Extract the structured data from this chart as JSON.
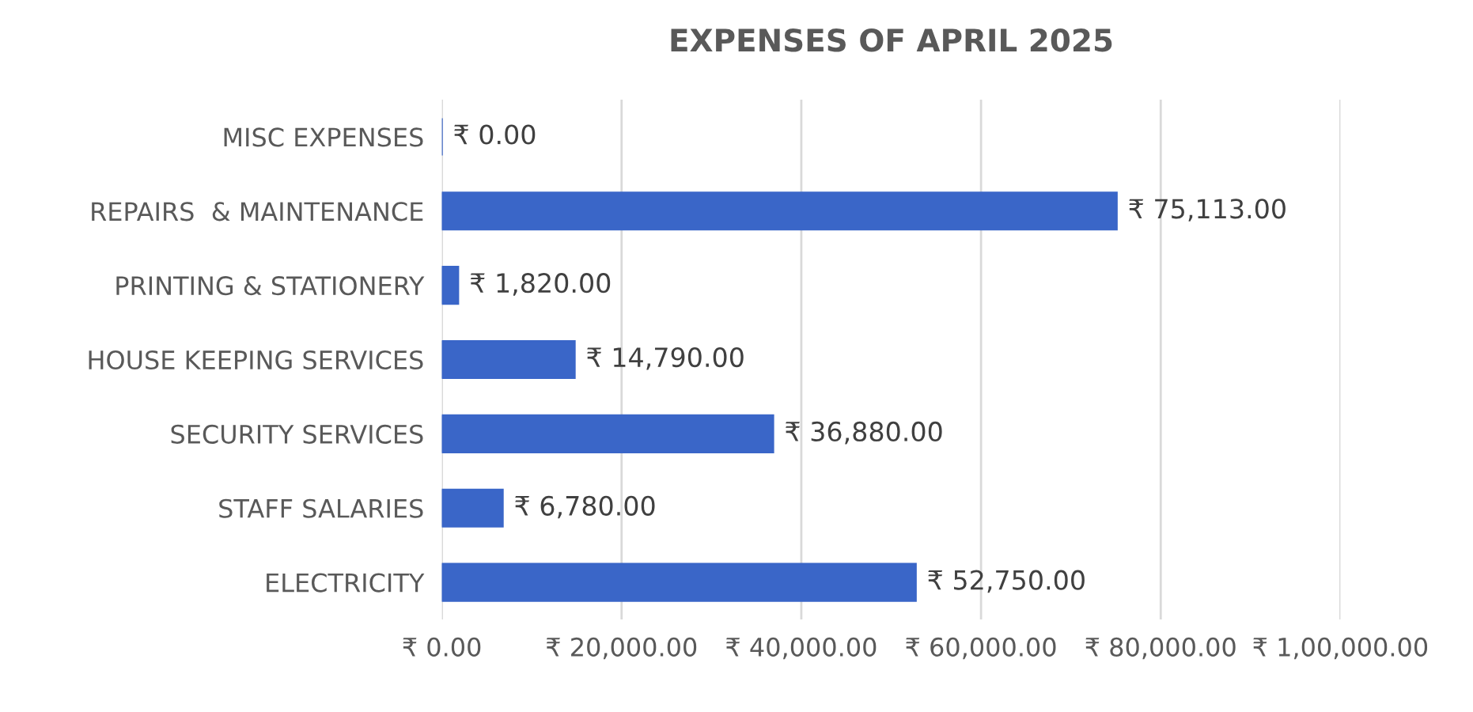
{
  "chart_data": {
    "type": "bar",
    "orientation": "horizontal",
    "title": "EXPENSES OF APRIL 2025",
    "categories": [
      "MISC EXPENSES",
      "REPAIRS  & MAINTENANCE",
      "PRINTING & STATIONERY",
      "HOUSE KEEPING SERVICES",
      "SECURITY SERVICES",
      "STAFF SALARIES",
      "ELECTRICITY"
    ],
    "values": [
      0,
      75113,
      1820,
      14790,
      36880,
      6780,
      52750
    ],
    "value_labels": [
      "₹ 0.00",
      "₹ 75,113.00",
      "₹ 1,820.00",
      "₹ 14,790.00",
      "₹ 36,880.00",
      "₹ 6,780.00",
      "₹ 52,750.00"
    ],
    "color": "#3a66c8",
    "xlim": [
      0,
      100000
    ],
    "xticks": [
      {
        "value": 0,
        "label": "₹ 0.00"
      },
      {
        "value": 20000,
        "label": "₹ 20,000.00"
      },
      {
        "value": 40000,
        "label": "₹ 40,000.00"
      },
      {
        "value": 60000,
        "label": "₹ 60,000.00"
      },
      {
        "value": 80000,
        "label": "₹ 80,000.00"
      },
      {
        "value": 100000,
        "label": "₹ 1,00,000.00"
      }
    ],
    "grid": "x"
  }
}
